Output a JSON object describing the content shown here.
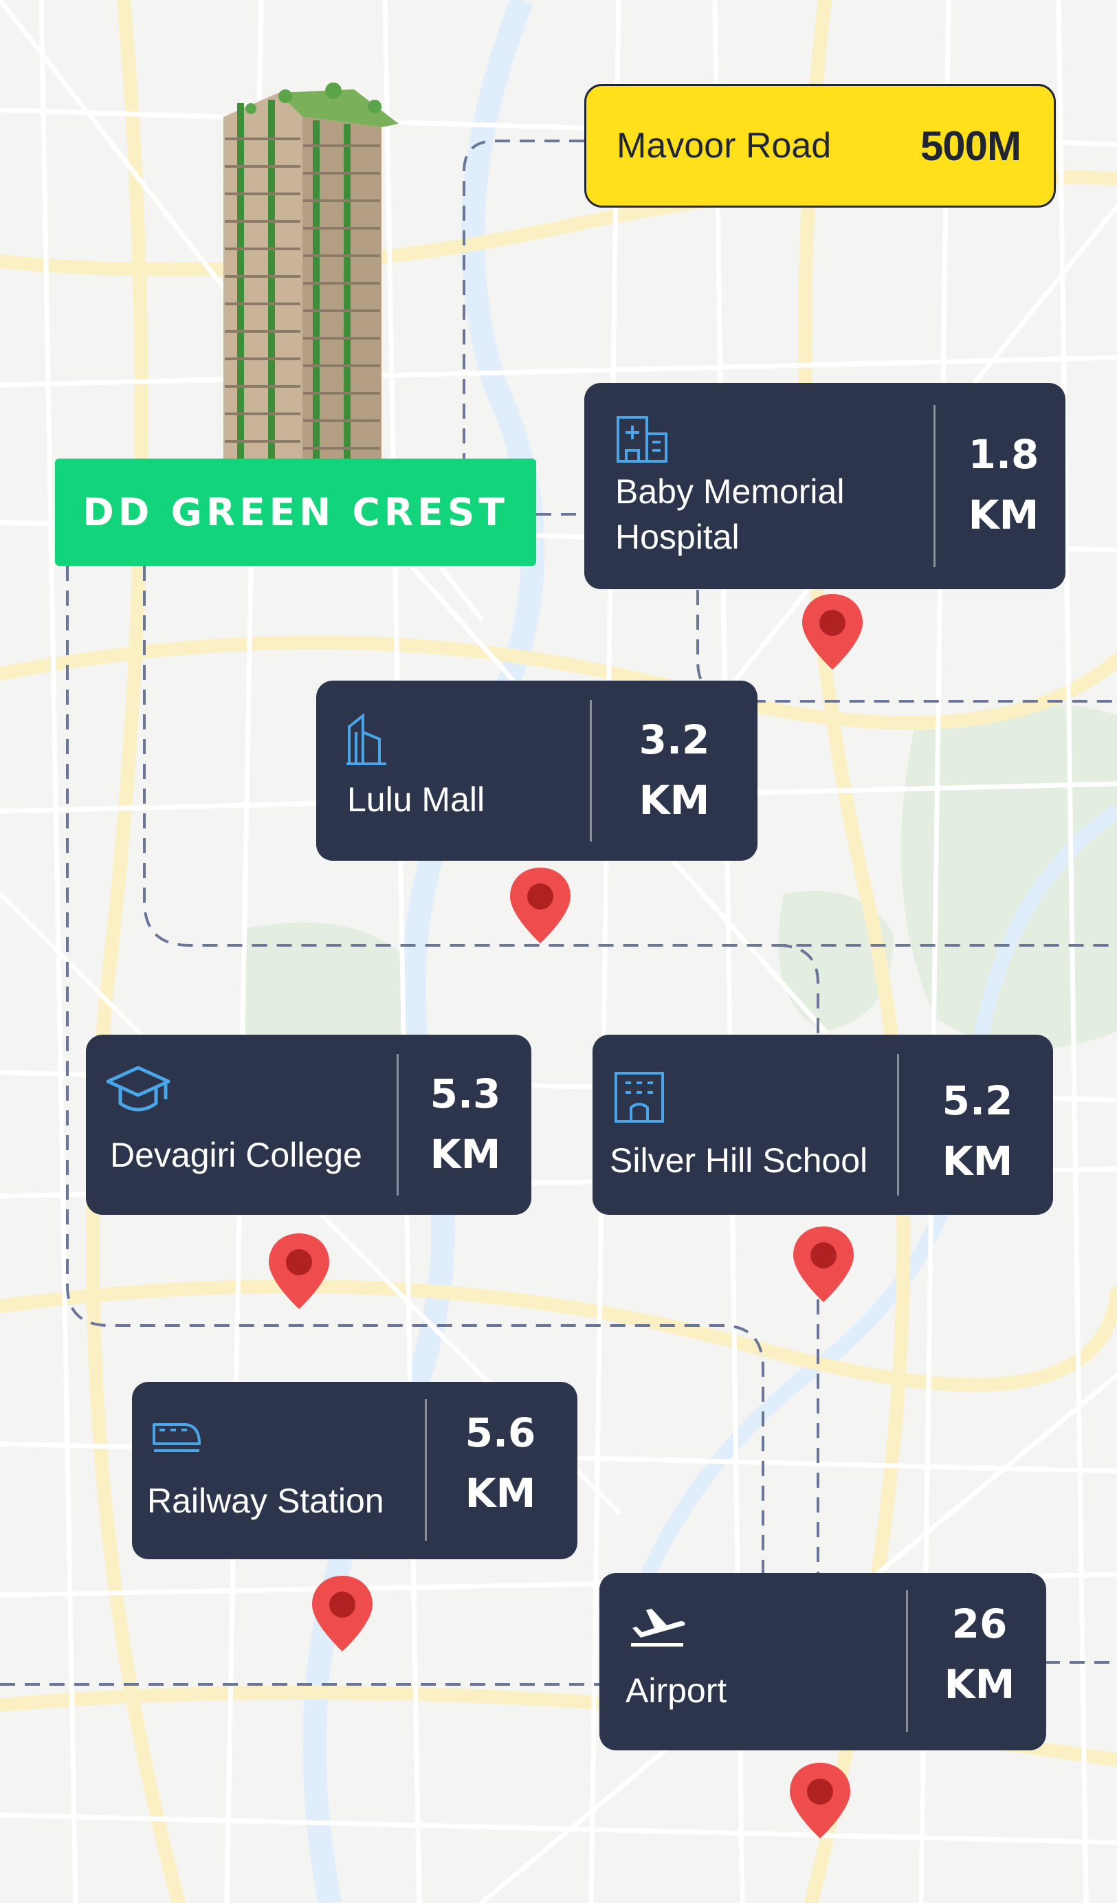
{
  "project": {
    "name": "DD GREEN CREST"
  },
  "highlight": {
    "road_name": "Mavoor Road",
    "distance": "500M"
  },
  "places": [
    {
      "name_line1": "Baby Memorial",
      "name_line2": "Hospital",
      "dist_value": "1.8",
      "dist_unit": "KM",
      "icon": "hospital-icon"
    },
    {
      "name_line1": "Lulu Mall",
      "dist_value": "3.2",
      "dist_unit": "KM",
      "icon": "mall-building-icon"
    },
    {
      "name_line1": "Devagiri College",
      "dist_value": "5.3",
      "dist_unit": "KM",
      "icon": "graduation-cap-icon"
    },
    {
      "name_line1": "Silver Hill School",
      "dist_value": "5.2",
      "dist_unit": "KM",
      "icon": "school-building-icon"
    },
    {
      "name_line1": "Railway Station",
      "dist_value": "5.6",
      "dist_unit": "KM",
      "icon": "train-icon"
    },
    {
      "name_line1": "Airport",
      "dist_value": "26",
      "dist_unit": "KM",
      "icon": "airplane-icon"
    }
  ],
  "colors": {
    "card_bg": "#2c354b",
    "brand_green": "#12d47a",
    "highlight_yellow": "#ffe01a",
    "pin_red": "#ef4d4d",
    "route_dash": "#6a7597",
    "map_road_yellow": "#fbf0c4",
    "map_water": "#dfeefa",
    "map_park": "#e3ede0"
  }
}
